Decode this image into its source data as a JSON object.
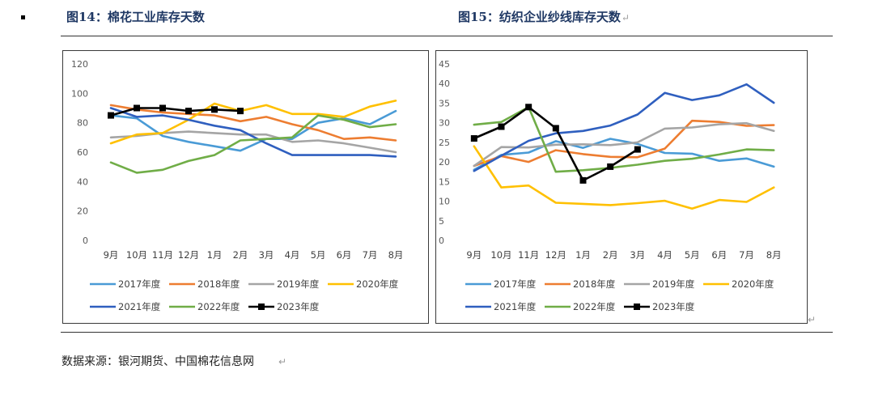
{
  "left_title": "图14：棉花工业库存天数",
  "right_title": "图15：纺织企业纱线库存天数",
  "paragraph_mark": "↵",
  "source": "数据来源：银河期货、中国棉花信息网",
  "chart_data": [
    {
      "type": "line",
      "title": "图14：棉花工业库存天数",
      "categories": [
        "9月",
        "10月",
        "11月",
        "12月",
        "1月",
        "2月",
        "3月",
        "4月",
        "5月",
        "6月",
        "7月",
        "8月"
      ],
      "ylim": [
        0,
        120
      ],
      "yticks": [
        0,
        20,
        40,
        60,
        80,
        100,
        120
      ],
      "legend_position": "bottom",
      "series": [
        {
          "name": "2017年度",
          "color": "#4a9bd6",
          "values": [
            85,
            83,
            71,
            67,
            64,
            61,
            69,
            69,
            80,
            83,
            79,
            88
          ]
        },
        {
          "name": "2018年度",
          "color": "#ed7d31",
          "values": [
            92,
            89,
            87,
            86,
            85,
            81,
            84,
            79,
            75,
            69,
            70,
            68
          ]
        },
        {
          "name": "2019年度",
          "color": "#a5a5a5",
          "values": [
            70,
            71,
            73,
            74,
            73,
            72,
            72,
            67,
            68,
            66,
            63,
            60
          ]
        },
        {
          "name": "2020年度",
          "color": "#ffc000",
          "values": [
            66,
            72,
            73,
            82,
            93,
            88,
            92,
            86,
            86,
            84,
            91,
            95
          ]
        },
        {
          "name": "2021年度",
          "color": "#2f5fbf",
          "values": [
            90,
            84,
            85,
            82,
            78,
            75,
            66,
            58,
            58,
            58,
            58,
            57
          ]
        },
        {
          "name": "2022年度",
          "color": "#70ad47",
          "values": [
            53,
            46,
            48,
            54,
            58,
            68,
            69,
            70,
            85,
            82,
            77,
            79
          ]
        },
        {
          "name": "2023年度",
          "color": "#000000",
          "values": [
            85,
            90,
            90,
            88,
            89,
            88,
            null,
            null,
            null,
            null,
            null,
            null
          ]
        }
      ]
    },
    {
      "type": "line",
      "title": "图15：纺织企业纱线库存天数",
      "categories": [
        "9月",
        "10月",
        "11月",
        "12月",
        "1月",
        "2月",
        "3月",
        "4月",
        "5月",
        "6月",
        "7月",
        "8月"
      ],
      "ylim": [
        0,
        45
      ],
      "yticks": [
        0,
        5,
        10,
        15,
        20,
        25,
        30,
        35,
        40,
        45
      ],
      "legend_position": "bottom",
      "series": [
        {
          "name": "2017年度",
          "color": "#4a9bd6",
          "values": [
            18,
            21.8,
            22.4,
            25.3,
            23.6,
            25.9,
            24.6,
            22.3,
            22.1,
            20.3,
            20.9,
            18.8
          ]
        },
        {
          "name": "2018年度",
          "color": "#ed7d31",
          "values": [
            19,
            21.5,
            20,
            23,
            22,
            21.3,
            21.2,
            23.4,
            30.5,
            30.2,
            29.2,
            29.4
          ]
        },
        {
          "name": "2019年度",
          "color": "#a5a5a5",
          "values": [
            19,
            23.8,
            23.7,
            24.4,
            24.5,
            24.3,
            25,
            28.5,
            28.8,
            29.6,
            29.9,
            27.9
          ]
        },
        {
          "name": "2020年度",
          "color": "#ffc000",
          "values": [
            24,
            13.5,
            14,
            9.6,
            9.3,
            9,
            9.5,
            10.1,
            8.1,
            10.3,
            9.8,
            13.5
          ]
        },
        {
          "name": "2021年度",
          "color": "#2f5fbf",
          "values": [
            17.7,
            21.6,
            25.4,
            27.3,
            27.9,
            29.3,
            32.1,
            37.6,
            35.8,
            37,
            39.8,
            35.1
          ]
        },
        {
          "name": "2022年度",
          "color": "#70ad47",
          "values": [
            29.5,
            30.2,
            34,
            17.5,
            17.9,
            18.5,
            19.3,
            20.3,
            20.8,
            21.9,
            23.2,
            23
          ]
        },
        {
          "name": "2023年度",
          "color": "#000000",
          "values": [
            26,
            29,
            34,
            28.6,
            15.3,
            18.8,
            23.2,
            null,
            null,
            null,
            null,
            null
          ]
        }
      ]
    }
  ]
}
